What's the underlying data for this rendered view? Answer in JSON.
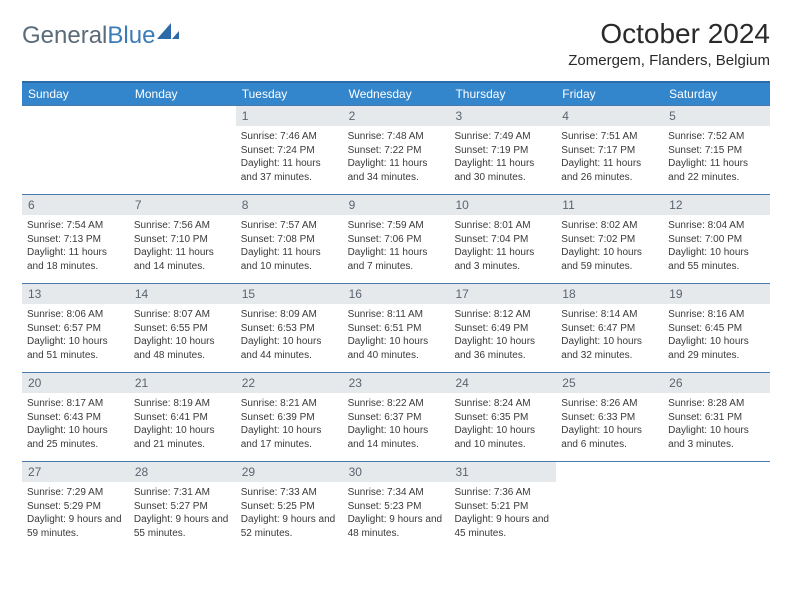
{
  "logo": {
    "general": "General",
    "blue": "Blue"
  },
  "title": "October 2024",
  "location": "Zomergem, Flanders, Belgium",
  "colors": {
    "header_blue": "#3385cc",
    "border_blue": "#2d6aa8",
    "row_border": "#4a7aad",
    "daynum_bg": "#e6e9ec",
    "text": "#333333",
    "logo_gray": "#5a6b7a",
    "logo_blue": "#3b7cb8"
  },
  "weekdays": [
    "Sunday",
    "Monday",
    "Tuesday",
    "Wednesday",
    "Thursday",
    "Friday",
    "Saturday"
  ],
  "weeks": [
    [
      {
        "n": "",
        "empty": true
      },
      {
        "n": "",
        "empty": true
      },
      {
        "n": "1",
        "sr": "7:46 AM",
        "ss": "7:24 PM",
        "dl": "11 hours and 37 minutes."
      },
      {
        "n": "2",
        "sr": "7:48 AM",
        "ss": "7:22 PM",
        "dl": "11 hours and 34 minutes."
      },
      {
        "n": "3",
        "sr": "7:49 AM",
        "ss": "7:19 PM",
        "dl": "11 hours and 30 minutes."
      },
      {
        "n": "4",
        "sr": "7:51 AM",
        "ss": "7:17 PM",
        "dl": "11 hours and 26 minutes."
      },
      {
        "n": "5",
        "sr": "7:52 AM",
        "ss": "7:15 PM",
        "dl": "11 hours and 22 minutes."
      }
    ],
    [
      {
        "n": "6",
        "sr": "7:54 AM",
        "ss": "7:13 PM",
        "dl": "11 hours and 18 minutes."
      },
      {
        "n": "7",
        "sr": "7:56 AM",
        "ss": "7:10 PM",
        "dl": "11 hours and 14 minutes."
      },
      {
        "n": "8",
        "sr": "7:57 AM",
        "ss": "7:08 PM",
        "dl": "11 hours and 10 minutes."
      },
      {
        "n": "9",
        "sr": "7:59 AM",
        "ss": "7:06 PM",
        "dl": "11 hours and 7 minutes."
      },
      {
        "n": "10",
        "sr": "8:01 AM",
        "ss": "7:04 PM",
        "dl": "11 hours and 3 minutes."
      },
      {
        "n": "11",
        "sr": "8:02 AM",
        "ss": "7:02 PM",
        "dl": "10 hours and 59 minutes."
      },
      {
        "n": "12",
        "sr": "8:04 AM",
        "ss": "7:00 PM",
        "dl": "10 hours and 55 minutes."
      }
    ],
    [
      {
        "n": "13",
        "sr": "8:06 AM",
        "ss": "6:57 PM",
        "dl": "10 hours and 51 minutes."
      },
      {
        "n": "14",
        "sr": "8:07 AM",
        "ss": "6:55 PM",
        "dl": "10 hours and 48 minutes."
      },
      {
        "n": "15",
        "sr": "8:09 AM",
        "ss": "6:53 PM",
        "dl": "10 hours and 44 minutes."
      },
      {
        "n": "16",
        "sr": "8:11 AM",
        "ss": "6:51 PM",
        "dl": "10 hours and 40 minutes."
      },
      {
        "n": "17",
        "sr": "8:12 AM",
        "ss": "6:49 PM",
        "dl": "10 hours and 36 minutes."
      },
      {
        "n": "18",
        "sr": "8:14 AM",
        "ss": "6:47 PM",
        "dl": "10 hours and 32 minutes."
      },
      {
        "n": "19",
        "sr": "8:16 AM",
        "ss": "6:45 PM",
        "dl": "10 hours and 29 minutes."
      }
    ],
    [
      {
        "n": "20",
        "sr": "8:17 AM",
        "ss": "6:43 PM",
        "dl": "10 hours and 25 minutes."
      },
      {
        "n": "21",
        "sr": "8:19 AM",
        "ss": "6:41 PM",
        "dl": "10 hours and 21 minutes."
      },
      {
        "n": "22",
        "sr": "8:21 AM",
        "ss": "6:39 PM",
        "dl": "10 hours and 17 minutes."
      },
      {
        "n": "23",
        "sr": "8:22 AM",
        "ss": "6:37 PM",
        "dl": "10 hours and 14 minutes."
      },
      {
        "n": "24",
        "sr": "8:24 AM",
        "ss": "6:35 PM",
        "dl": "10 hours and 10 minutes."
      },
      {
        "n": "25",
        "sr": "8:26 AM",
        "ss": "6:33 PM",
        "dl": "10 hours and 6 minutes."
      },
      {
        "n": "26",
        "sr": "8:28 AM",
        "ss": "6:31 PM",
        "dl": "10 hours and 3 minutes."
      }
    ],
    [
      {
        "n": "27",
        "sr": "7:29 AM",
        "ss": "5:29 PM",
        "dl": "9 hours and 59 minutes."
      },
      {
        "n": "28",
        "sr": "7:31 AM",
        "ss": "5:27 PM",
        "dl": "9 hours and 55 minutes."
      },
      {
        "n": "29",
        "sr": "7:33 AM",
        "ss": "5:25 PM",
        "dl": "9 hours and 52 minutes."
      },
      {
        "n": "30",
        "sr": "7:34 AM",
        "ss": "5:23 PM",
        "dl": "9 hours and 48 minutes."
      },
      {
        "n": "31",
        "sr": "7:36 AM",
        "ss": "5:21 PM",
        "dl": "9 hours and 45 minutes."
      },
      {
        "n": "",
        "empty": true
      },
      {
        "n": "",
        "empty": true
      }
    ]
  ]
}
